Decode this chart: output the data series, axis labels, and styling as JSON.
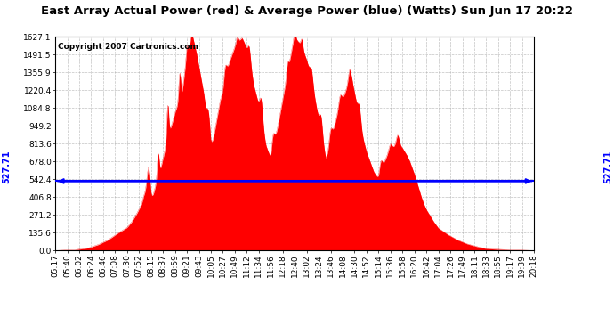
{
  "title": "East Array Actual Power (red) & Average Power (blue) (Watts) Sun Jun 17 20:22",
  "copyright": "Copyright 2007 Cartronics.com",
  "average_value": 527.71,
  "ymax": 1627.1,
  "yticks": [
    0.0,
    135.6,
    271.2,
    406.8,
    542.4,
    678.0,
    813.6,
    949.2,
    1084.8,
    1220.4,
    1355.9,
    1491.5,
    1627.1
  ],
  "background_color": "#ffffff",
  "fill_color": "#ff0000",
  "line_color": "#0000ff",
  "grid_color": "#aaaaaa",
  "title_color": "#000000",
  "copyright_color": "#000000",
  "x_tick_labels": [
    "05:17",
    "05:40",
    "06:02",
    "06:24",
    "06:46",
    "07:08",
    "07:30",
    "07:52",
    "08:15",
    "08:37",
    "08:59",
    "09:21",
    "09:43",
    "10:05",
    "10:27",
    "10:49",
    "11:12",
    "11:34",
    "11:56",
    "12:18",
    "12:40",
    "13:02",
    "13:24",
    "13:46",
    "14:08",
    "14:30",
    "14:52",
    "15:14",
    "15:36",
    "15:58",
    "16:20",
    "16:42",
    "17:04",
    "17:26",
    "17:49",
    "18:11",
    "18:33",
    "18:55",
    "19:17",
    "19:39",
    "20:18"
  ],
  "title_fontsize": 9.5,
  "copyright_fontsize": 6.5,
  "tick_fontsize": 6.5,
  "avg_label": "527.71",
  "spike_data": [
    [
      0.0,
      0
    ],
    [
      0.04,
      5
    ],
    [
      0.07,
      20
    ],
    [
      0.09,
      45
    ],
    [
      0.11,
      80
    ],
    [
      0.13,
      130
    ],
    [
      0.15,
      175
    ],
    [
      0.16,
      220
    ],
    [
      0.17,
      280
    ],
    [
      0.18,
      350
    ],
    [
      0.185,
      420
    ],
    [
      0.19,
      460
    ],
    [
      0.195,
      430
    ],
    [
      0.2,
      390
    ],
    [
      0.205,
      430
    ],
    [
      0.21,
      500
    ],
    [
      0.215,
      560
    ],
    [
      0.22,
      620
    ],
    [
      0.225,
      700
    ],
    [
      0.23,
      780
    ],
    [
      0.235,
      860
    ],
    [
      0.24,
      920
    ],
    [
      0.245,
      980
    ],
    [
      0.25,
      1050
    ],
    [
      0.255,
      1100
    ],
    [
      0.26,
      1150
    ],
    [
      0.265,
      1200
    ],
    [
      0.27,
      1350
    ],
    [
      0.275,
      1450
    ],
    [
      0.28,
      1550
    ],
    [
      0.285,
      1600
    ],
    [
      0.29,
      1580
    ],
    [
      0.295,
      1500
    ],
    [
      0.3,
      1400
    ],
    [
      0.305,
      1300
    ],
    [
      0.31,
      1200
    ],
    [
      0.315,
      1050
    ],
    [
      0.32,
      900
    ],
    [
      0.325,
      800
    ],
    [
      0.33,
      850
    ],
    [
      0.335,
      950
    ],
    [
      0.34,
      1050
    ],
    [
      0.345,
      1150
    ],
    [
      0.35,
      1200
    ],
    [
      0.355,
      1300
    ],
    [
      0.36,
      1380
    ],
    [
      0.365,
      1450
    ],
    [
      0.37,
      1500
    ],
    [
      0.375,
      1550
    ],
    [
      0.38,
      1580
    ],
    [
      0.385,
      1600
    ],
    [
      0.39,
      1620
    ],
    [
      0.395,
      1580
    ],
    [
      0.4,
      1520
    ],
    [
      0.405,
      1450
    ],
    [
      0.41,
      1350
    ],
    [
      0.415,
      1250
    ],
    [
      0.42,
      1180
    ],
    [
      0.425,
      1100
    ],
    [
      0.43,
      1000
    ],
    [
      0.435,
      900
    ],
    [
      0.44,
      800
    ],
    [
      0.445,
      750
    ],
    [
      0.45,
      700
    ],
    [
      0.455,
      780
    ],
    [
      0.46,
      860
    ],
    [
      0.465,
      950
    ],
    [
      0.47,
      1050
    ],
    [
      0.475,
      1150
    ],
    [
      0.48,
      1250
    ],
    [
      0.485,
      1350
    ],
    [
      0.49,
      1450
    ],
    [
      0.495,
      1550
    ],
    [
      0.5,
      1620
    ],
    [
      0.505,
      1600
    ],
    [
      0.51,
      1580
    ],
    [
      0.515,
      1550
    ],
    [
      0.52,
      1500
    ],
    [
      0.525,
      1450
    ],
    [
      0.53,
      1380
    ],
    [
      0.535,
      1300
    ],
    [
      0.54,
      1200
    ],
    [
      0.545,
      1100
    ],
    [
      0.55,
      1000
    ],
    [
      0.555,
      900
    ],
    [
      0.56,
      800
    ],
    [
      0.565,
      700
    ],
    [
      0.57,
      750
    ],
    [
      0.575,
      820
    ],
    [
      0.58,
      900
    ],
    [
      0.585,
      980
    ],
    [
      0.59,
      1050
    ],
    [
      0.595,
      1100
    ],
    [
      0.6,
      1150
    ],
    [
      0.605,
      1200
    ],
    [
      0.61,
      1250
    ],
    [
      0.615,
      1300
    ],
    [
      0.62,
      1280
    ],
    [
      0.625,
      1200
    ],
    [
      0.63,
      1100
    ],
    [
      0.635,
      1000
    ],
    [
      0.64,
      900
    ],
    [
      0.645,
      820
    ],
    [
      0.65,
      750
    ],
    [
      0.655,
      700
    ],
    [
      0.66,
      650
    ],
    [
      0.665,
      600
    ],
    [
      0.67,
      570
    ],
    [
      0.675,
      550
    ],
    [
      0.68,
      600
    ],
    [
      0.685,
      650
    ],
    [
      0.69,
      700
    ],
    [
      0.695,
      740
    ],
    [
      0.7,
      760
    ],
    [
      0.705,
      780
    ],
    [
      0.71,
      800
    ],
    [
      0.715,
      820
    ],
    [
      0.72,
      800
    ],
    [
      0.725,
      780
    ],
    [
      0.73,
      750
    ],
    [
      0.735,
      720
    ],
    [
      0.74,
      680
    ],
    [
      0.745,
      630
    ],
    [
      0.75,
      580
    ],
    [
      0.755,
      520
    ],
    [
      0.76,
      460
    ],
    [
      0.765,
      400
    ],
    [
      0.77,
      350
    ],
    [
      0.775,
      310
    ],
    [
      0.78,
      280
    ],
    [
      0.785,
      250
    ],
    [
      0.79,
      220
    ],
    [
      0.795,
      195
    ],
    [
      0.8,
      170
    ],
    [
      0.81,
      145
    ],
    [
      0.82,
      120
    ],
    [
      0.83,
      100
    ],
    [
      0.84,
      80
    ],
    [
      0.85,
      65
    ],
    [
      0.86,
      50
    ],
    [
      0.87,
      40
    ],
    [
      0.88,
      30
    ],
    [
      0.89,
      22
    ],
    [
      0.9,
      15
    ],
    [
      0.92,
      10
    ],
    [
      0.95,
      5
    ],
    [
      0.98,
      2
    ],
    [
      1.0,
      0
    ]
  ]
}
